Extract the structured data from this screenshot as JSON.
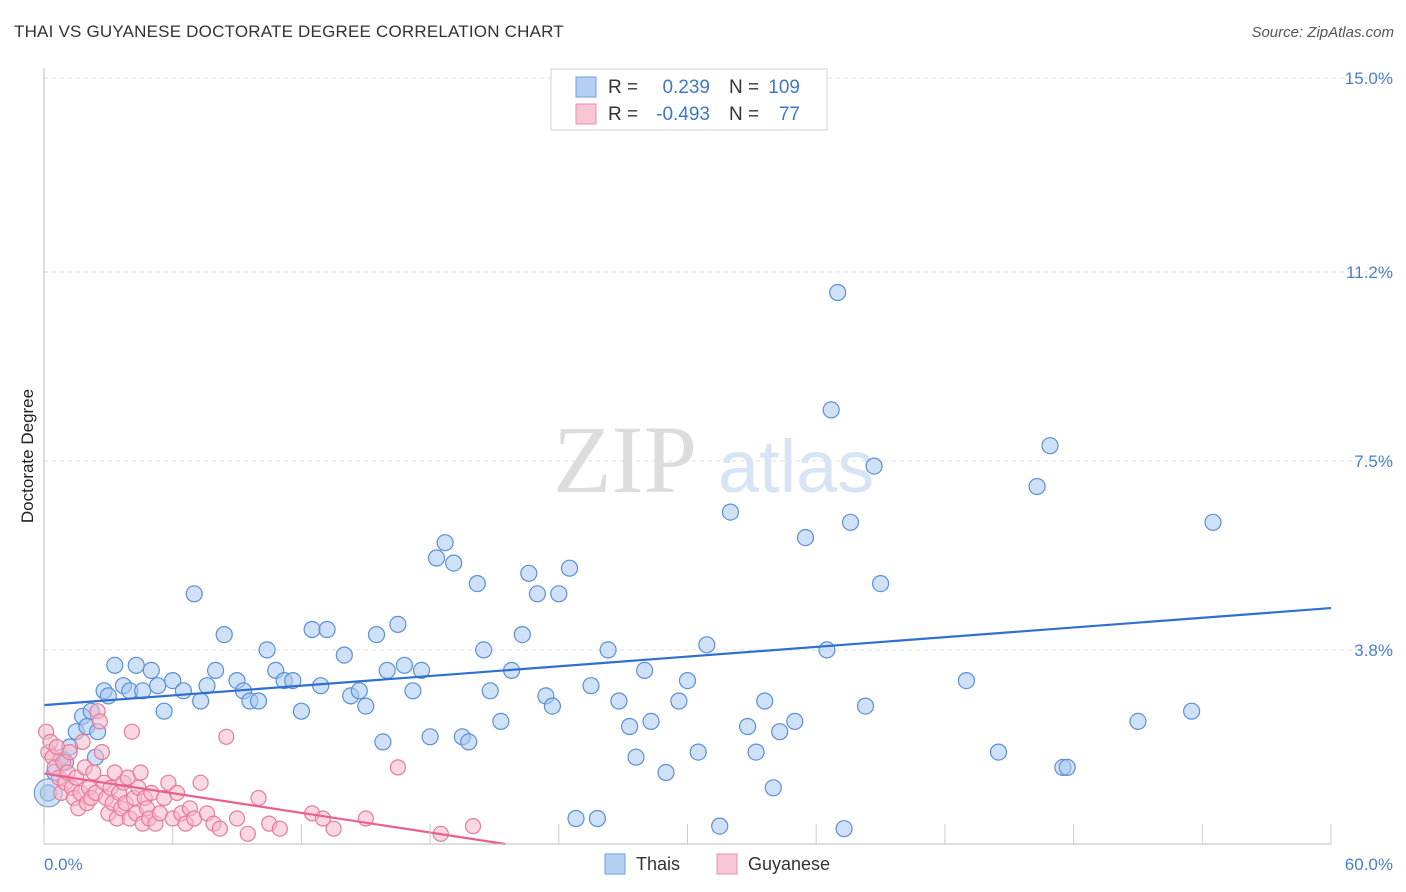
{
  "header": {
    "title": "THAI VS GUYANESE DOCTORATE DEGREE CORRELATION CHART",
    "source": "Source: ZipAtlas.com"
  },
  "colors": {
    "thais_fill": "#a8c8f0",
    "thais_stroke": "#5b8fd6",
    "thais_line": "#2f6fcf",
    "guyanese_fill": "#f6b8c8",
    "guyanese_stroke": "#e87a9b",
    "guyanese_line": "#e8608c",
    "tick_text": "#4a7fd0",
    "grid": "#dddddd"
  },
  "legend": {
    "r_label": "R =",
    "n_label": "N =",
    "thais": {
      "r": "0.239",
      "n": "109"
    },
    "guyanese": {
      "r": "-0.493",
      "n": "77"
    }
  },
  "watermark": {
    "zip": "ZIP",
    "atlas": "atlas"
  },
  "chart_data": {
    "type": "scatter",
    "title": "THAI VS GUYANESE DOCTORATE DEGREE CORRELATION CHART",
    "xlabel": "",
    "ylabel": "Doctorate Degree",
    "xlim": [
      0,
      60
    ],
    "ylim": [
      0,
      15
    ],
    "x_tick_labels": [
      "0.0%",
      "60.0%"
    ],
    "y_ticks": [
      3.8,
      7.5,
      11.2,
      15.0
    ],
    "y_tick_labels": [
      "3.8%",
      "7.5%",
      "11.2%",
      "15.0%"
    ],
    "series": [
      {
        "name": "Thais",
        "r": 0.239,
        "n": 109,
        "trend": [
          [
            0,
            2.72
          ],
          [
            60,
            4.62
          ]
        ],
        "points": [
          [
            0.2,
            1.0
          ],
          [
            0.5,
            1.4
          ],
          [
            0.8,
            1.7
          ],
          [
            1.0,
            1.6
          ],
          [
            1.2,
            1.9
          ],
          [
            1.5,
            2.2
          ],
          [
            1.8,
            2.5
          ],
          [
            2.0,
            2.3
          ],
          [
            2.2,
            2.6
          ],
          [
            2.5,
            2.2
          ],
          [
            2.8,
            3.0
          ],
          [
            3.0,
            2.9
          ],
          [
            3.3,
            3.5
          ],
          [
            3.7,
            3.1
          ],
          [
            4.0,
            3.0
          ],
          [
            4.3,
            3.5
          ],
          [
            4.6,
            3.0
          ],
          [
            5.0,
            3.4
          ],
          [
            5.3,
            3.1
          ],
          [
            5.6,
            2.6
          ],
          [
            6.0,
            3.2
          ],
          [
            6.5,
            3.0
          ],
          [
            7.0,
            4.9
          ],
          [
            7.3,
            2.8
          ],
          [
            7.6,
            3.1
          ],
          [
            8.0,
            3.4
          ],
          [
            8.4,
            4.1
          ],
          [
            9.0,
            3.2
          ],
          [
            9.3,
            3.0
          ],
          [
            9.6,
            2.8
          ],
          [
            10.0,
            2.8
          ],
          [
            10.4,
            3.8
          ],
          [
            10.8,
            3.4
          ],
          [
            11.2,
            3.2
          ],
          [
            11.6,
            3.2
          ],
          [
            12.0,
            2.6
          ],
          [
            12.5,
            4.2
          ],
          [
            12.9,
            3.1
          ],
          [
            13.2,
            4.2
          ],
          [
            14.0,
            3.7
          ],
          [
            14.3,
            2.9
          ],
          [
            14.7,
            3.0
          ],
          [
            15.0,
            2.7
          ],
          [
            15.5,
            4.1
          ],
          [
            15.8,
            2.0
          ],
          [
            16.0,
            3.4
          ],
          [
            16.5,
            4.3
          ],
          [
            16.8,
            3.5
          ],
          [
            17.2,
            3.0
          ],
          [
            17.6,
            3.4
          ],
          [
            18.0,
            2.1
          ],
          [
            18.3,
            5.6
          ],
          [
            18.7,
            5.9
          ],
          [
            19.1,
            5.5
          ],
          [
            19.5,
            2.1
          ],
          [
            19.8,
            2.0
          ],
          [
            20.2,
            5.1
          ],
          [
            20.5,
            3.8
          ],
          [
            20.8,
            3.0
          ],
          [
            21.3,
            2.4
          ],
          [
            21.8,
            3.4
          ],
          [
            22.3,
            4.1
          ],
          [
            22.6,
            5.3
          ],
          [
            23.0,
            4.9
          ],
          [
            23.4,
            2.9
          ],
          [
            23.7,
            2.7
          ],
          [
            24.0,
            4.9
          ],
          [
            24.5,
            5.4
          ],
          [
            24.8,
            0.5
          ],
          [
            25.5,
            3.1
          ],
          [
            25.8,
            0.5
          ],
          [
            26.3,
            3.8
          ],
          [
            26.8,
            2.8
          ],
          [
            27.3,
            2.3
          ],
          [
            27.6,
            1.7
          ],
          [
            28.0,
            3.4
          ],
          [
            28.3,
            2.4
          ],
          [
            29.0,
            1.4
          ],
          [
            29.6,
            2.8
          ],
          [
            30.0,
            3.2
          ],
          [
            30.5,
            1.8
          ],
          [
            30.9,
            3.9
          ],
          [
            31.5,
            0.35
          ],
          [
            32.0,
            6.5
          ],
          [
            32.8,
            2.3
          ],
          [
            33.2,
            1.8
          ],
          [
            33.6,
            2.8
          ],
          [
            34.0,
            1.1
          ],
          [
            34.3,
            2.2
          ],
          [
            35.0,
            2.4
          ],
          [
            35.5,
            6.0
          ],
          [
            36.5,
            3.8
          ],
          [
            36.7,
            8.5
          ],
          [
            37.0,
            10.8
          ],
          [
            37.3,
            0.3
          ],
          [
            37.6,
            6.3
          ],
          [
            38.3,
            2.7
          ],
          [
            38.7,
            7.4
          ],
          [
            39.0,
            5.1
          ],
          [
            43.0,
            3.2
          ],
          [
            44.5,
            1.8
          ],
          [
            46.3,
            7.0
          ],
          [
            46.9,
            7.8
          ],
          [
            47.5,
            1.5
          ],
          [
            47.7,
            1.5
          ],
          [
            51.0,
            2.4
          ],
          [
            53.5,
            2.6
          ],
          [
            54.5,
            6.3
          ],
          [
            2.4,
            1.7
          ]
        ]
      },
      {
        "name": "Guyanese",
        "r": -0.493,
        "n": 77,
        "trend": [
          [
            0,
            1.38
          ],
          [
            21.5,
            0.0
          ]
        ],
        "points": [
          [
            0.1,
            2.2
          ],
          [
            0.2,
            1.8
          ],
          [
            0.3,
            2.0
          ],
          [
            0.4,
            1.7
          ],
          [
            0.5,
            1.5
          ],
          [
            0.6,
            1.9
          ],
          [
            0.7,
            1.3
          ],
          [
            0.8,
            1.0
          ],
          [
            0.9,
            1.6
          ],
          [
            1.0,
            1.2
          ],
          [
            1.1,
            1.4
          ],
          [
            1.2,
            1.8
          ],
          [
            1.3,
            1.1
          ],
          [
            1.4,
            0.9
          ],
          [
            1.5,
            1.3
          ],
          [
            1.6,
            0.7
          ],
          [
            1.7,
            1.0
          ],
          [
            1.8,
            2.0
          ],
          [
            1.9,
            1.5
          ],
          [
            2.0,
            0.8
          ],
          [
            2.1,
            1.1
          ],
          [
            2.2,
            0.9
          ],
          [
            2.3,
            1.4
          ],
          [
            2.4,
            1.0
          ],
          [
            2.5,
            2.6
          ],
          [
            2.6,
            2.4
          ],
          [
            2.7,
            1.8
          ],
          [
            2.8,
            1.2
          ],
          [
            2.9,
            0.9
          ],
          [
            3.0,
            0.6
          ],
          [
            3.1,
            1.1
          ],
          [
            3.2,
            0.8
          ],
          [
            3.3,
            1.4
          ],
          [
            3.4,
            0.5
          ],
          [
            3.5,
            1.0
          ],
          [
            3.6,
            0.7
          ],
          [
            3.7,
            1.2
          ],
          [
            3.8,
            0.8
          ],
          [
            3.9,
            1.3
          ],
          [
            4.0,
            0.5
          ],
          [
            4.1,
            2.2
          ],
          [
            4.2,
            0.9
          ],
          [
            4.3,
            0.6
          ],
          [
            4.4,
            1.1
          ],
          [
            4.5,
            1.4
          ],
          [
            4.6,
            0.4
          ],
          [
            4.7,
            0.9
          ],
          [
            4.8,
            0.7
          ],
          [
            4.9,
            0.5
          ],
          [
            5.0,
            1.0
          ],
          [
            5.2,
            0.4
          ],
          [
            5.4,
            0.6
          ],
          [
            5.6,
            0.9
          ],
          [
            5.8,
            1.2
          ],
          [
            6.0,
            0.5
          ],
          [
            6.2,
            1.0
          ],
          [
            6.4,
            0.6
          ],
          [
            6.6,
            0.4
          ],
          [
            6.8,
            0.7
          ],
          [
            7.0,
            0.5
          ],
          [
            7.3,
            1.2
          ],
          [
            7.6,
            0.6
          ],
          [
            7.9,
            0.4
          ],
          [
            8.2,
            0.3
          ],
          [
            8.5,
            2.1
          ],
          [
            9.0,
            0.5
          ],
          [
            9.5,
            0.2
          ],
          [
            10.0,
            0.9
          ],
          [
            10.5,
            0.4
          ],
          [
            11.0,
            0.3
          ],
          [
            12.5,
            0.6
          ],
          [
            13.0,
            0.5
          ],
          [
            13.5,
            0.3
          ],
          [
            15.0,
            0.5
          ],
          [
            16.5,
            1.5
          ],
          [
            18.5,
            0.2
          ],
          [
            20.0,
            0.35
          ]
        ]
      }
    ]
  },
  "bottom_legend": {
    "thais": "Thais",
    "guyanese": "Guyanese"
  }
}
